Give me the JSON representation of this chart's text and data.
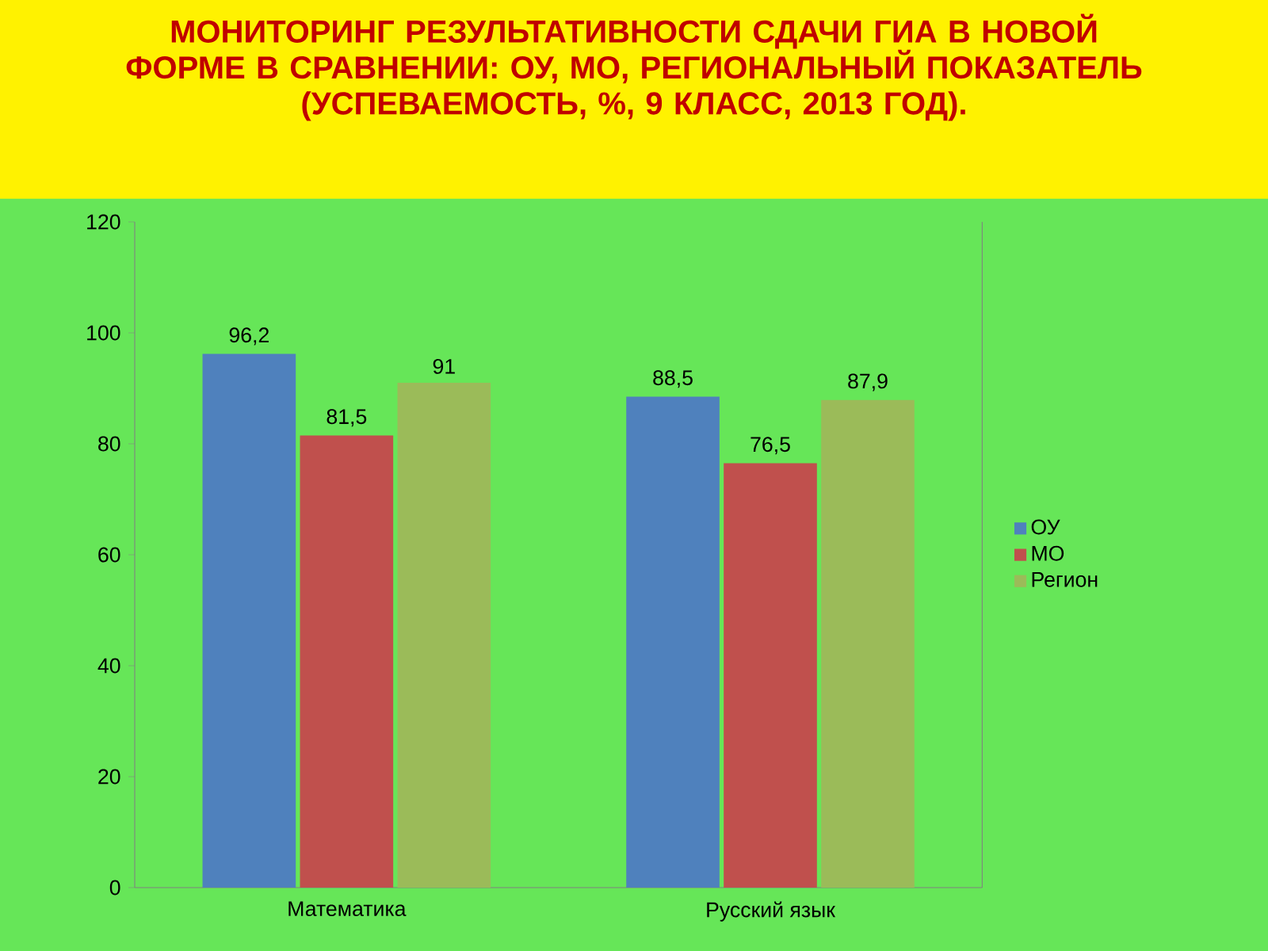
{
  "chart_data": {
    "type": "bar",
    "title": "МОНИТОРИНГ РЕЗУЛЬТАТИВНОСТИ СДАЧИ ГИА В НОВОЙ ФОРМЕ  В СРАВНЕНИИ: ОУ, МО, РЕГИОНАЛЬНЫЙ ПОКАЗАТЕЛЬ",
    "subtitle": "(УСПЕВАЕМОСТЬ, %, 9 КЛАСС, 2013 ГОД).",
    "categories": [
      "Математика",
      "Русский язык"
    ],
    "series": [
      {
        "name": "ОУ",
        "color": "#4f81bd",
        "values": [
          96.2,
          88.5
        ],
        "value_labels": [
          "96,2",
          "88,5"
        ]
      },
      {
        "name": "МО",
        "color": "#c0504d",
        "values": [
          81.5,
          76.5
        ],
        "value_labels": [
          "81,5",
          "76,5"
        ]
      },
      {
        "name": "Регион",
        "color": "#9bbb59",
        "values": [
          91,
          87.9
        ],
        "value_labels": [
          "91",
          "87,9"
        ]
      }
    ],
    "ylim": [
      0,
      120
    ],
    "yticks": [
      0,
      20,
      40,
      60,
      80,
      100,
      120
    ],
    "grid": false,
    "legend": "right"
  }
}
